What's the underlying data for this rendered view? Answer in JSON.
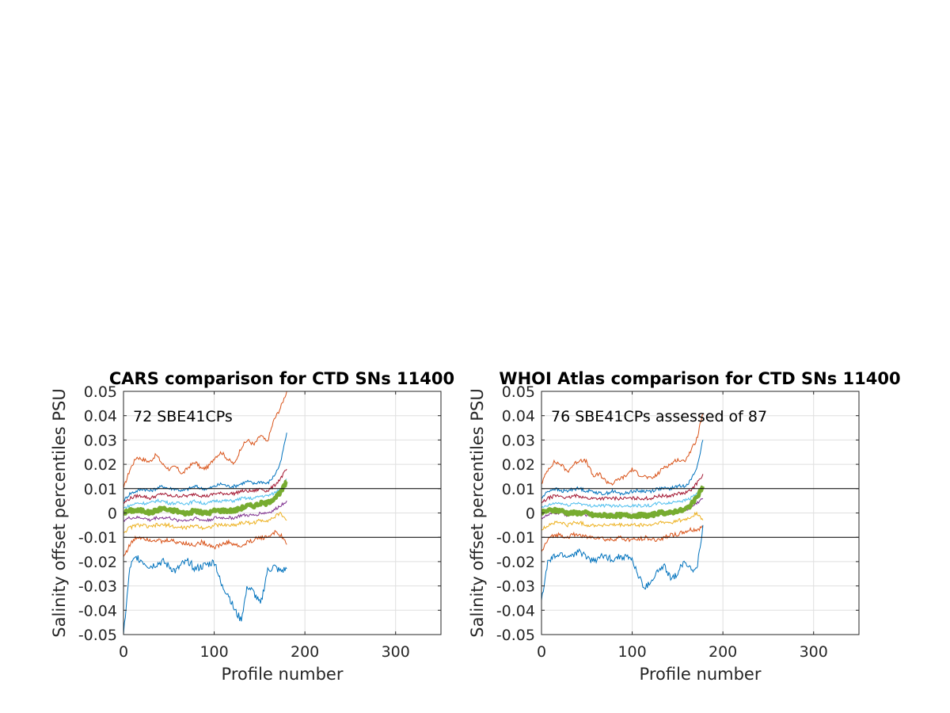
{
  "chart_data": [
    {
      "type": "line",
      "title": "CARS comparison for CTD SNs 11400",
      "xlabel": "Profile number",
      "ylabel": "Salinity offset percentiles PSU",
      "annotation": "72 SBE41CPs",
      "xlim": [
        0,
        350
      ],
      "ylim": [
        -0.05,
        0.05
      ],
      "xticks": [
        "0",
        "100",
        "200",
        "300"
      ],
      "yticks": [
        "-0.05",
        "-0.04",
        "-0.03",
        "-0.02",
        "-0.01",
        "0",
        "0.01",
        "0.02",
        "0.03",
        "0.04",
        "0.05"
      ],
      "grid": true,
      "reference_lines": [
        0.01,
        -0.01
      ],
      "x_end": 180,
      "series": [
        {
          "color": "#D95319",
          "values": [
            0.01,
            0.018,
            0.023,
            0.022,
            0.021,
            0.024,
            0.02,
            0.018,
            0.019,
            0.016,
            0.019,
            0.021,
            0.018,
            0.019,
            0.023,
            0.025,
            0.022,
            0.02,
            0.027,
            0.03,
            0.028,
            0.032,
            0.029,
            0.038,
            0.043,
            0.05
          ]
        },
        {
          "color": "#0072BD",
          "values": [
            0.005,
            0.008,
            0.009,
            0.01,
            0.009,
            0.01,
            0.011,
            0.01,
            0.01,
            0.009,
            0.01,
            0.011,
            0.01,
            0.01,
            0.011,
            0.012,
            0.011,
            0.011,
            0.012,
            0.013,
            0.012,
            0.013,
            0.012,
            0.015,
            0.02,
            0.033
          ]
        },
        {
          "color": "#A2142F",
          "values": [
            0.004,
            0.006,
            0.007,
            0.007,
            0.006,
            0.007,
            0.008,
            0.007,
            0.007,
            0.007,
            0.007,
            0.008,
            0.007,
            0.007,
            0.008,
            0.008,
            0.008,
            0.008,
            0.009,
            0.009,
            0.009,
            0.01,
            0.009,
            0.011,
            0.014,
            0.018
          ]
        },
        {
          "color": "#4DBEEE",
          "values": [
            0.002,
            0.003,
            0.004,
            0.004,
            0.004,
            0.005,
            0.005,
            0.004,
            0.004,
            0.004,
            0.004,
            0.005,
            0.004,
            0.004,
            0.005,
            0.005,
            0.005,
            0.005,
            0.006,
            0.006,
            0.006,
            0.007,
            0.007,
            0.008,
            0.01,
            0.014
          ]
        },
        {
          "color": "#77AC30",
          "values": [
            0.0,
            0.001,
            0.001,
            0.001,
            0.0,
            0.001,
            0.002,
            0.001,
            0.001,
            0.0,
            0.0,
            0.001,
            0.0,
            0.0,
            0.001,
            0.001,
            0.001,
            0.001,
            0.002,
            0.003,
            0.003,
            0.004,
            0.004,
            0.006,
            0.008,
            0.013
          ]
        },
        {
          "color": "#7E2F8E",
          "values": [
            -0.003,
            -0.002,
            -0.002,
            -0.002,
            -0.003,
            -0.002,
            -0.002,
            -0.002,
            -0.003,
            -0.003,
            -0.003,
            -0.002,
            -0.003,
            -0.003,
            -0.002,
            -0.002,
            -0.002,
            -0.002,
            -0.001,
            -0.001,
            -0.001,
            0.0,
            0.0,
            0.001,
            0.003,
            0.005
          ]
        },
        {
          "color": "#EDB120",
          "values": [
            -0.008,
            -0.006,
            -0.005,
            -0.005,
            -0.006,
            -0.005,
            -0.005,
            -0.005,
            -0.006,
            -0.006,
            -0.006,
            -0.005,
            -0.006,
            -0.006,
            -0.005,
            -0.005,
            -0.005,
            -0.005,
            -0.004,
            -0.004,
            -0.004,
            -0.003,
            -0.003,
            -0.002,
            0.0,
            -0.003
          ]
        },
        {
          "color": "#D95319",
          "values": [
            -0.018,
            -0.013,
            -0.01,
            -0.01,
            -0.011,
            -0.011,
            -0.012,
            -0.011,
            -0.012,
            -0.012,
            -0.013,
            -0.013,
            -0.012,
            -0.013,
            -0.014,
            -0.013,
            -0.012,
            -0.013,
            -0.014,
            -0.012,
            -0.011,
            -0.01,
            -0.01,
            -0.008,
            -0.009,
            -0.013
          ]
        },
        {
          "color": "#0072BD",
          "values": [
            -0.05,
            -0.022,
            -0.018,
            -0.02,
            -0.022,
            -0.021,
            -0.02,
            -0.022,
            -0.024,
            -0.021,
            -0.02,
            -0.023,
            -0.022,
            -0.021,
            -0.02,
            -0.03,
            -0.033,
            -0.04,
            -0.044,
            -0.03,
            -0.033,
            -0.038,
            -0.024,
            -0.022,
            -0.024,
            -0.023
          ]
        }
      ],
      "thick_series": {
        "color": "#77AC30",
        "values": [
          0.0,
          0.001,
          0.001,
          0.001,
          0.0,
          0.001,
          0.002,
          0.001,
          0.001,
          0.0,
          0.0,
          0.001,
          0.0,
          0.0,
          0.001,
          0.001,
          0.001,
          0.001,
          0.002,
          0.003,
          0.003,
          0.004,
          0.004,
          0.006,
          0.008,
          0.013
        ]
      }
    },
    {
      "type": "line",
      "title": "WHOI Atlas comparison for CTD SNs 11400",
      "xlabel": "Profile number",
      "ylabel": "Salinity offset percentiles PSU",
      "annotation": "76 SBE41CPs assessed of 87",
      "xlim": [
        0,
        350
      ],
      "ylim": [
        -0.05,
        0.05
      ],
      "xticks": [
        "0",
        "100",
        "200",
        "300"
      ],
      "yticks": [
        "-0.05",
        "-0.04",
        "-0.03",
        "-0.02",
        "-0.01",
        "0",
        "0.01",
        "0.02",
        "0.03",
        "0.04",
        "0.05"
      ],
      "grid": true,
      "reference_lines": [
        0.01,
        -0.01
      ],
      "x_end": 178,
      "series": [
        {
          "color": "#D95319",
          "values": [
            0.012,
            0.018,
            0.021,
            0.02,
            0.017,
            0.02,
            0.022,
            0.021,
            0.015,
            0.016,
            0.013,
            0.012,
            0.014,
            0.015,
            0.018,
            0.016,
            0.015,
            0.014,
            0.016,
            0.019,
            0.02,
            0.022,
            0.021,
            0.025,
            0.03,
            0.041
          ]
        },
        {
          "color": "#0072BD",
          "values": [
            0.006,
            0.009,
            0.01,
            0.009,
            0.009,
            0.01,
            0.01,
            0.009,
            0.009,
            0.008,
            0.008,
            0.009,
            0.008,
            0.008,
            0.009,
            0.009,
            0.009,
            0.009,
            0.01,
            0.01,
            0.01,
            0.011,
            0.011,
            0.013,
            0.018,
            0.03
          ]
        },
        {
          "color": "#A2142F",
          "values": [
            0.004,
            0.006,
            0.007,
            0.007,
            0.006,
            0.007,
            0.007,
            0.006,
            0.006,
            0.006,
            0.006,
            0.006,
            0.006,
            0.006,
            0.006,
            0.006,
            0.006,
            0.006,
            0.007,
            0.007,
            0.007,
            0.008,
            0.008,
            0.009,
            0.012,
            0.016
          ]
        },
        {
          "color": "#4DBEEE",
          "values": [
            0.002,
            0.003,
            0.004,
            0.004,
            0.003,
            0.004,
            0.004,
            0.003,
            0.003,
            0.003,
            0.003,
            0.003,
            0.003,
            0.003,
            0.003,
            0.003,
            0.003,
            0.003,
            0.004,
            0.004,
            0.004,
            0.005,
            0.005,
            0.006,
            0.008,
            0.011
          ]
        },
        {
          "color": "#7E2F8E",
          "values": [
            -0.002,
            -0.001,
            0.0,
            0.0,
            -0.001,
            0.0,
            0.0,
            -0.001,
            -0.001,
            -0.001,
            -0.001,
            -0.001,
            -0.001,
            -0.001,
            -0.001,
            -0.001,
            -0.001,
            -0.001,
            0.0,
            0.0,
            0.0,
            0.001,
            0.001,
            0.002,
            0.004,
            0.006
          ]
        },
        {
          "color": "#EDB120",
          "values": [
            -0.007,
            -0.005,
            -0.004,
            -0.004,
            -0.005,
            -0.004,
            -0.004,
            -0.005,
            -0.005,
            -0.005,
            -0.005,
            -0.005,
            -0.005,
            -0.005,
            -0.005,
            -0.005,
            -0.005,
            -0.005,
            -0.004,
            -0.004,
            -0.004,
            -0.003,
            -0.003,
            -0.002,
            0.0,
            -0.003
          ]
        },
        {
          "color": "#D95319",
          "values": [
            -0.016,
            -0.011,
            -0.009,
            -0.009,
            -0.01,
            -0.009,
            -0.009,
            -0.01,
            -0.01,
            -0.01,
            -0.011,
            -0.011,
            -0.01,
            -0.011,
            -0.011,
            -0.011,
            -0.01,
            -0.011,
            -0.011,
            -0.01,
            -0.009,
            -0.009,
            -0.008,
            -0.007,
            -0.007,
            -0.006
          ]
        },
        {
          "color": "#0072BD",
          "values": [
            -0.036,
            -0.02,
            -0.018,
            -0.017,
            -0.018,
            -0.017,
            -0.016,
            -0.018,
            -0.02,
            -0.018,
            -0.018,
            -0.019,
            -0.018,
            -0.018,
            -0.019,
            -0.026,
            -0.031,
            -0.028,
            -0.024,
            -0.022,
            -0.027,
            -0.025,
            -0.02,
            -0.022,
            -0.024,
            -0.005
          ]
        }
      ],
      "thick_series": {
        "color": "#77AC30",
        "values": [
          0.0,
          0.001,
          0.001,
          0.001,
          0.0,
          0.0,
          0.0,
          0.0,
          -0.001,
          -0.001,
          -0.001,
          -0.001,
          -0.001,
          -0.001,
          -0.001,
          -0.001,
          -0.001,
          -0.001,
          0.0,
          0.0,
          0.0,
          0.001,
          0.001,
          0.003,
          0.006,
          0.011
        ]
      }
    }
  ]
}
